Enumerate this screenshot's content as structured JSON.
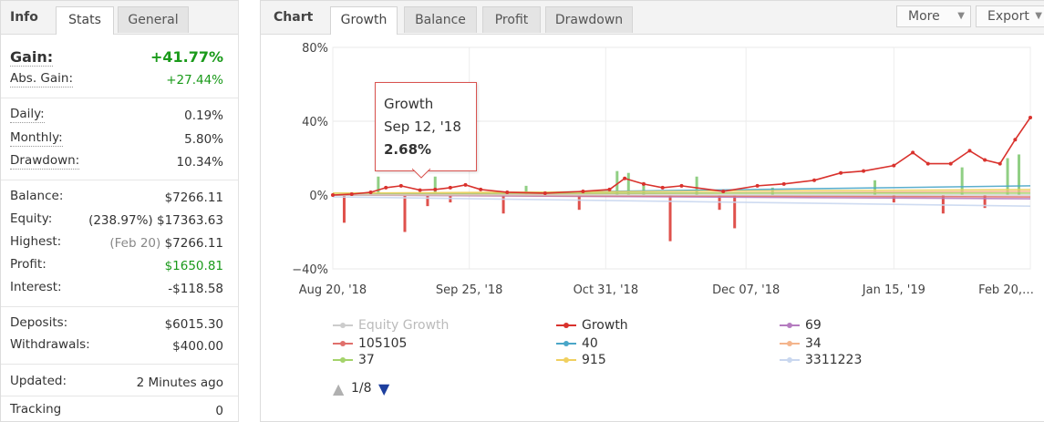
{
  "left": {
    "tabs": [
      {
        "label": "Info"
      },
      {
        "label": "Stats"
      },
      {
        "label": "General"
      }
    ],
    "gain": {
      "label": "Gain:",
      "value": "+41.77%"
    },
    "abs_gain": {
      "label": "Abs. Gain:",
      "value": "+27.44%"
    },
    "daily": {
      "label": "Daily:",
      "value": "0.19%"
    },
    "monthly": {
      "label": "Monthly:",
      "value": "5.80%"
    },
    "drawdown": {
      "label": "Drawdown:",
      "value": "10.34%"
    },
    "balance": {
      "label": "Balance:",
      "value": "$7266.11"
    },
    "equity": {
      "label": "Equity:",
      "note": "(238.97%)",
      "value": "$17363.63"
    },
    "highest": {
      "label": "Highest:",
      "note": "(Feb 20)",
      "value": "$7266.11"
    },
    "profit": {
      "label": "Profit:",
      "value": "$1650.81"
    },
    "interest": {
      "label": "Interest:",
      "value": "-$118.58"
    },
    "deposits": {
      "label": "Deposits:",
      "value": "$6015.30"
    },
    "withdrawals": {
      "label": "Withdrawals:",
      "value": "$400.00"
    },
    "updated": {
      "label": "Updated:",
      "value": "2 Minutes ago"
    },
    "tracking": {
      "label": "Tracking",
      "value": "0"
    }
  },
  "right": {
    "title": "Chart",
    "tabs": [
      {
        "label": "Growth"
      },
      {
        "label": "Balance"
      },
      {
        "label": "Profit"
      },
      {
        "label": "Drawdown"
      }
    ],
    "more_label": "More",
    "export_label": "Export",
    "pager": {
      "text": "1/8",
      "up_icon": "up-triangle-icon",
      "down_icon": "down-triangle-icon"
    },
    "tooltip": {
      "series": "Growth",
      "date": "Sep 12, '18",
      "value": "2.68%"
    }
  },
  "colors": {
    "growth": "#d9322d",
    "bars_pos": "#7dc76f",
    "bars_neg": "#d9322d",
    "accent_green": "#1a9a1a",
    "tab_bg": "#e4e4e4"
  },
  "chart_data": {
    "type": "line",
    "ylim": [
      -40,
      80
    ],
    "yticks": [
      "80%",
      "40%",
      "0%",
      "−40%"
    ],
    "ytick_values": [
      80,
      40,
      0,
      -40
    ],
    "xticks": [
      "Aug 20, '18",
      "Sep 25, '18",
      "Oct 31, '18",
      "Dec 07, '18",
      "Jan 15, '19",
      "Feb 20,…"
    ],
    "xlim": [
      "2018-08-20",
      "2019-02-20"
    ],
    "grid": true,
    "legend_placement": "bottom",
    "legend": [
      {
        "name": "Equity Growth",
        "color": "#cccccc",
        "marker": "circle"
      },
      {
        "name": "Growth",
        "color": "#d9322d",
        "marker": "diamond"
      },
      {
        "name": "69",
        "color": "#b57cc0",
        "marker": "square"
      },
      {
        "name": "105105",
        "color": "#e0706c",
        "marker": "triangle"
      },
      {
        "name": "40",
        "color": "#4aa6c8",
        "marker": "triangle-down"
      },
      {
        "name": "34",
        "color": "#f4b58c",
        "marker": "circle"
      },
      {
        "name": "37",
        "color": "#a4d36b",
        "marker": "diamond"
      },
      {
        "name": "915",
        "color": "#f0d060",
        "marker": "square"
      },
      {
        "name": "3311223",
        "color": "#c9d7ef",
        "marker": "triangle"
      }
    ],
    "series": [
      {
        "name": "Growth",
        "values": [
          {
            "x": "2018-08-20",
            "y": 0
          },
          {
            "x": "2018-08-25",
            "y": 0.5
          },
          {
            "x": "2018-08-30",
            "y": 1.5
          },
          {
            "x": "2018-09-03",
            "y": 4
          },
          {
            "x": "2018-09-07",
            "y": 5
          },
          {
            "x": "2018-09-12",
            "y": 2.68
          },
          {
            "x": "2018-09-16",
            "y": 3
          },
          {
            "x": "2018-09-20",
            "y": 4
          },
          {
            "x": "2018-09-24",
            "y": 5.5
          },
          {
            "x": "2018-09-28",
            "y": 3
          },
          {
            "x": "2018-10-05",
            "y": 1.5
          },
          {
            "x": "2018-10-15",
            "y": 1
          },
          {
            "x": "2018-10-25",
            "y": 2
          },
          {
            "x": "2018-11-01",
            "y": 3
          },
          {
            "x": "2018-11-05",
            "y": 9
          },
          {
            "x": "2018-11-10",
            "y": 6
          },
          {
            "x": "2018-11-15",
            "y": 4
          },
          {
            "x": "2018-11-20",
            "y": 5
          },
          {
            "x": "2018-12-01",
            "y": 2
          },
          {
            "x": "2018-12-10",
            "y": 5
          },
          {
            "x": "2018-12-17",
            "y": 6
          },
          {
            "x": "2018-12-25",
            "y": 8
          },
          {
            "x": "2019-01-01",
            "y": 12
          },
          {
            "x": "2019-01-07",
            "y": 13
          },
          {
            "x": "2019-01-15",
            "y": 16
          },
          {
            "x": "2019-01-20",
            "y": 23
          },
          {
            "x": "2019-01-24",
            "y": 17
          },
          {
            "x": "2019-01-30",
            "y": 17
          },
          {
            "x": "2019-02-04",
            "y": 24
          },
          {
            "x": "2019-02-08",
            "y": 19
          },
          {
            "x": "2019-02-12",
            "y": 17
          },
          {
            "x": "2019-02-16",
            "y": 30
          },
          {
            "x": "2019-02-20",
            "y": 42
          }
        ]
      },
      {
        "name": "69",
        "values": [
          {
            "x": "2018-08-20",
            "y": 0
          },
          {
            "x": "2019-02-20",
            "y": -2
          }
        ]
      },
      {
        "name": "105105",
        "values": [
          {
            "x": "2018-08-20",
            "y": 0
          },
          {
            "x": "2019-02-20",
            "y": -1
          }
        ]
      },
      {
        "name": "40",
        "values": [
          {
            "x": "2018-08-20",
            "y": 0
          },
          {
            "x": "2019-02-20",
            "y": 5
          }
        ]
      },
      {
        "name": "34",
        "values": [
          {
            "x": "2018-08-20",
            "y": 0
          },
          {
            "x": "2019-02-20",
            "y": 2
          }
        ]
      },
      {
        "name": "37",
        "values": [
          {
            "x": "2018-08-20",
            "y": 1
          },
          {
            "x": "2019-02-20",
            "y": 1
          }
        ]
      },
      {
        "name": "915",
        "values": [
          {
            "x": "2018-08-20",
            "y": 1
          },
          {
            "x": "2019-02-20",
            "y": 3
          }
        ]
      },
      {
        "name": "3311223",
        "values": [
          {
            "x": "2018-08-20",
            "y": -1
          },
          {
            "x": "2019-02-20",
            "y": -6
          }
        ]
      },
      {
        "name": "Equity Growth",
        "values": [
          {
            "x": "2018-08-20",
            "y": 0
          },
          {
            "x": "2019-02-20",
            "y": 0
          }
        ]
      }
    ],
    "bars": [
      {
        "x": "2018-08-23",
        "y": -15
      },
      {
        "x": "2018-09-01",
        "y": 10
      },
      {
        "x": "2018-09-08",
        "y": -20
      },
      {
        "x": "2018-09-14",
        "y": -6
      },
      {
        "x": "2018-09-16",
        "y": 10
      },
      {
        "x": "2018-09-20",
        "y": -4
      },
      {
        "x": "2018-10-04",
        "y": -10
      },
      {
        "x": "2018-10-10",
        "y": 5
      },
      {
        "x": "2018-10-24",
        "y": -8
      },
      {
        "x": "2018-11-03",
        "y": 13
      },
      {
        "x": "2018-11-06",
        "y": 12
      },
      {
        "x": "2018-11-10",
        "y": 7
      },
      {
        "x": "2018-11-17",
        "y": -25
      },
      {
        "x": "2018-11-24",
        "y": 10
      },
      {
        "x": "2018-11-30",
        "y": -8
      },
      {
        "x": "2018-12-04",
        "y": -18
      },
      {
        "x": "2018-12-14",
        "y": 4
      },
      {
        "x": "2019-01-10",
        "y": 8
      },
      {
        "x": "2019-01-15",
        "y": -4
      },
      {
        "x": "2019-01-28",
        "y": -10
      },
      {
        "x": "2019-02-02",
        "y": 15
      },
      {
        "x": "2019-02-08",
        "y": -7
      },
      {
        "x": "2019-02-14",
        "y": 20
      },
      {
        "x": "2019-02-17",
        "y": 22
      }
    ]
  }
}
